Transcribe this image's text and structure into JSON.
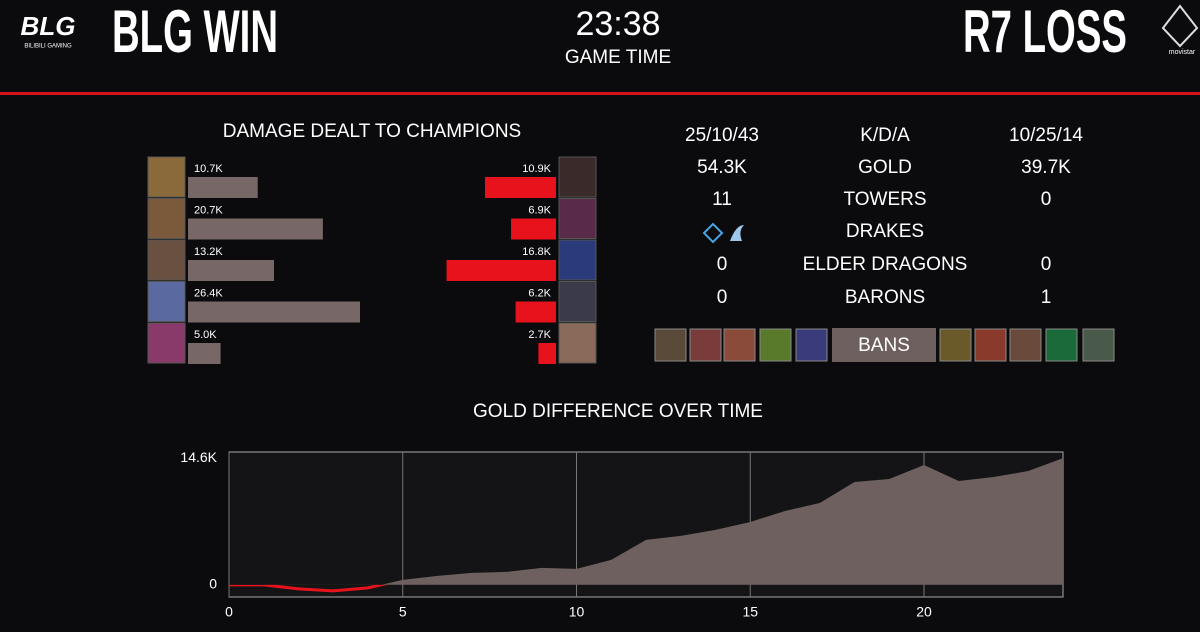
{
  "header": {
    "blg_logo": "BLG",
    "blg_logo_sub": "BILIBILI GAMING",
    "left_result": "BLG WIN",
    "timer": "23:38",
    "timer_label": "GAME TIME",
    "right_result": "R7 LOSS",
    "r7_logo_sub": "movistar"
  },
  "stats": {
    "rows": [
      {
        "blg": "25/10/43",
        "label": "K/D/A",
        "r7": "10/25/14"
      },
      {
        "blg": "54.3K",
        "label": "GOLD",
        "r7": "39.7K"
      },
      {
        "blg": "11",
        "label": "TOWERS",
        "r7": "0"
      },
      {
        "label": "DRAKES"
      },
      {
        "blg": "0",
        "label": "ELDER DRAGONS",
        "r7": "0"
      },
      {
        "blg": "0",
        "label": "BARONS",
        "r7": "1"
      }
    ],
    "bans_label": "BANS"
  },
  "chart_data": [
    {
      "type": "bar",
      "title": "DAMAGE DEALT TO CHAMPIONS",
      "series": [
        {
          "color": "#776867",
          "values": [
            10700,
            20700,
            13200,
            26400,
            5000
          ],
          "value_labels": [
            "10.7K",
            "20.7K",
            "13.2K",
            "26.4K",
            "5.0K"
          ]
        },
        {
          "color": "#e8121c",
          "values": [
            10900,
            6900,
            16800,
            6200,
            2700
          ],
          "value_labels": [
            "10.9K",
            "6.9K",
            "16.8K",
            "6.2K",
            "2.7K"
          ]
        }
      ]
    },
    {
      "type": "area",
      "title": "GOLD DIFFERENCE OVER TIME",
      "x": [
        0,
        1,
        2,
        3,
        4,
        5,
        6,
        7,
        8,
        9,
        10,
        11,
        12,
        13,
        14,
        15,
        16,
        17,
        18,
        19,
        20,
        21,
        22,
        23,
        24
      ],
      "values": [
        0,
        0,
        -460,
        -690,
        -350,
        575,
        1035,
        1380,
        1500,
        1955,
        1840,
        2875,
        5175,
        5635,
        6325,
        7245,
        8510,
        9430,
        11845,
        12190,
        13800,
        11960,
        12420,
        13110,
        14600
      ],
      "color": "#6e605f",
      "negative_color": "#e8121c",
      "xlim": [
        0,
        24
      ],
      "xticks": [
        0,
        5,
        10,
        15,
        20
      ],
      "ylim": [
        -1400,
        15300
      ],
      "yticks": [
        0,
        {
          "value": 14600,
          "label": "14.6K"
        }
      ],
      "grid": true
    }
  ]
}
